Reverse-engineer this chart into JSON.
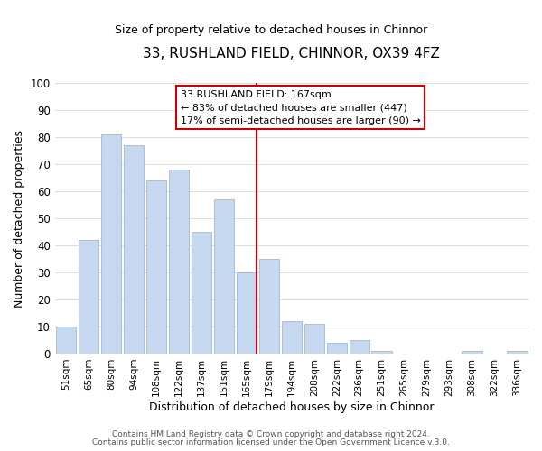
{
  "title": "33, RUSHLAND FIELD, CHINNOR, OX39 4FZ",
  "subtitle": "Size of property relative to detached houses in Chinnor",
  "xlabel": "Distribution of detached houses by size in Chinnor",
  "ylabel": "Number of detached properties",
  "categories": [
    "51sqm",
    "65sqm",
    "80sqm",
    "94sqm",
    "108sqm",
    "122sqm",
    "137sqm",
    "151sqm",
    "165sqm",
    "179sqm",
    "194sqm",
    "208sqm",
    "222sqm",
    "236sqm",
    "251sqm",
    "265sqm",
    "279sqm",
    "293sqm",
    "308sqm",
    "322sqm",
    "336sqm"
  ],
  "values": [
    10,
    42,
    81,
    77,
    64,
    68,
    45,
    57,
    30,
    35,
    12,
    11,
    4,
    5,
    1,
    0,
    0,
    0,
    1,
    0,
    1
  ],
  "bar_color": "#c5d8f0",
  "bar_edge_color": "#a0b8d8",
  "vline_x_index": 8,
  "vline_color": "#cc0000",
  "annotation_lines": [
    "33 RUSHLAND FIELD: 167sqm",
    "← 83% of detached houses are smaller (447)",
    "17% of semi-detached houses are larger (90) →"
  ],
  "annotation_box_edge": "#cc0000",
  "ylim": [
    0,
    100
  ],
  "footer1": "Contains HM Land Registry data © Crown copyright and database right 2024.",
  "footer2": "Contains public sector information licensed under the Open Government Licence v.3.0.",
  "background_color": "#ffffff",
  "grid_color": "#dddddd"
}
